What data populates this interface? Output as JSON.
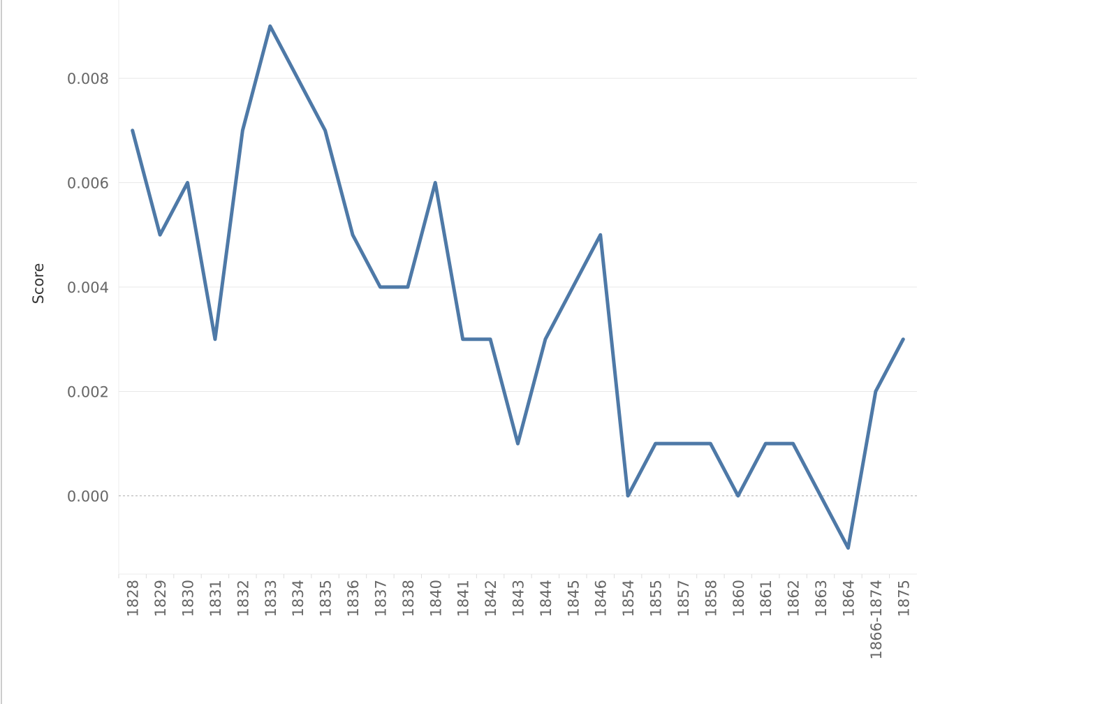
{
  "chart_data": {
    "type": "line",
    "y_label": "Score",
    "categories": [
      "1828",
      "1829",
      "1830",
      "1831",
      "1832",
      "1833",
      "1834",
      "1835",
      "1836",
      "1837",
      "1838",
      "1840",
      "1841",
      "1842",
      "1843",
      "1844",
      "1845",
      "1846",
      "1854",
      "1855",
      "1857",
      "1858",
      "1860",
      "1861",
      "1862",
      "1863",
      "1864",
      "1866-1874",
      "1875"
    ],
    "series": [
      {
        "color": "#4e79a7",
        "values": [
          0.007,
          0.005,
          0.006,
          0.003,
          0.007,
          0.009,
          0.008,
          0.007,
          0.005,
          0.004,
          0.004,
          0.006,
          0.003,
          0.003,
          0.001,
          0.003,
          0.004,
          0.005,
          0.0,
          0.001,
          0.001,
          0.001,
          0.0,
          0.001,
          0.001,
          0.0,
          -0.001,
          0.002,
          0.003
        ]
      }
    ],
    "ylim": [
      -0.0015,
      0.0095
    ],
    "yticks": [
      {
        "value": 0,
        "label": "0.000"
      },
      {
        "value": 0.002,
        "label": "0.002"
      },
      {
        "value": 0.004,
        "label": "0.004"
      },
      {
        "value": 0.006,
        "label": "0.006"
      },
      {
        "value": 0.008,
        "label": "0.008"
      }
    ],
    "grid": true
  }
}
